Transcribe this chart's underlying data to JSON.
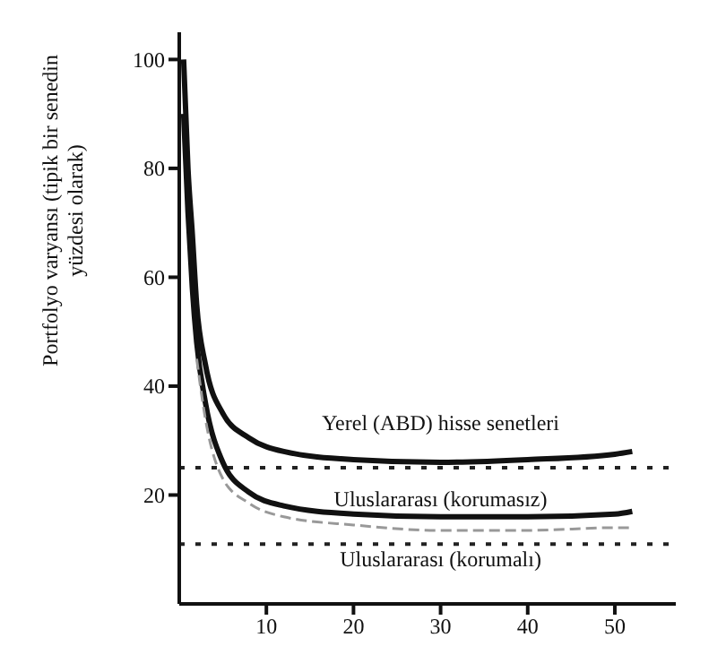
{
  "chart_data": {
    "type": "line",
    "ylabel": "Portfolyo varyansı (tipik bir senedin yüzdesi olarak)",
    "xlim": [
      0,
      57
    ],
    "xticks": [
      10,
      20,
      30,
      40,
      50
    ],
    "ylim": [
      0,
      105
    ],
    "yticks": [
      20,
      40,
      60,
      80,
      100
    ],
    "marker": "none",
    "series": [
      {
        "name": "Yerel (ABD) hisse senetleri",
        "color": "#111111",
        "line_style": "solid",
        "x": [
          0.5,
          1,
          1.5,
          2,
          3,
          5,
          8,
          12,
          20,
          30,
          40,
          50,
          52
        ],
        "values": [
          100,
          80,
          68,
          55,
          44,
          35,
          30.5,
          28,
          26.5,
          26,
          26.5,
          27.5,
          28
        ]
      },
      {
        "name": "Uluslararası (korumasız)",
        "color": "#111111",
        "line_style": "solid",
        "x": [
          0.5,
          1,
          1.5,
          2,
          3,
          5,
          8,
          12,
          20,
          30,
          40,
          50,
          52
        ],
        "values": [
          90,
          72,
          58,
          48,
          37,
          26,
          20.5,
          18,
          16.5,
          16,
          16,
          16.5,
          17
        ]
      },
      {
        "name": "Uluslararası (korumalı)",
        "color": "#999999",
        "line_style": "dashed",
        "x": [
          2,
          3,
          5,
          8,
          12,
          20,
          30,
          40,
          50,
          52
        ],
        "values": [
          45,
          34,
          23,
          18.5,
          16,
          14.5,
          13.5,
          13.5,
          14,
          14
        ]
      }
    ],
    "ref_lines": [
      {
        "axis": "y",
        "value": 25,
        "color": "#222222",
        "line_style": "dotted"
      },
      {
        "axis": "y",
        "value": 11,
        "color": "#222222",
        "line_style": "dotted"
      }
    ]
  }
}
